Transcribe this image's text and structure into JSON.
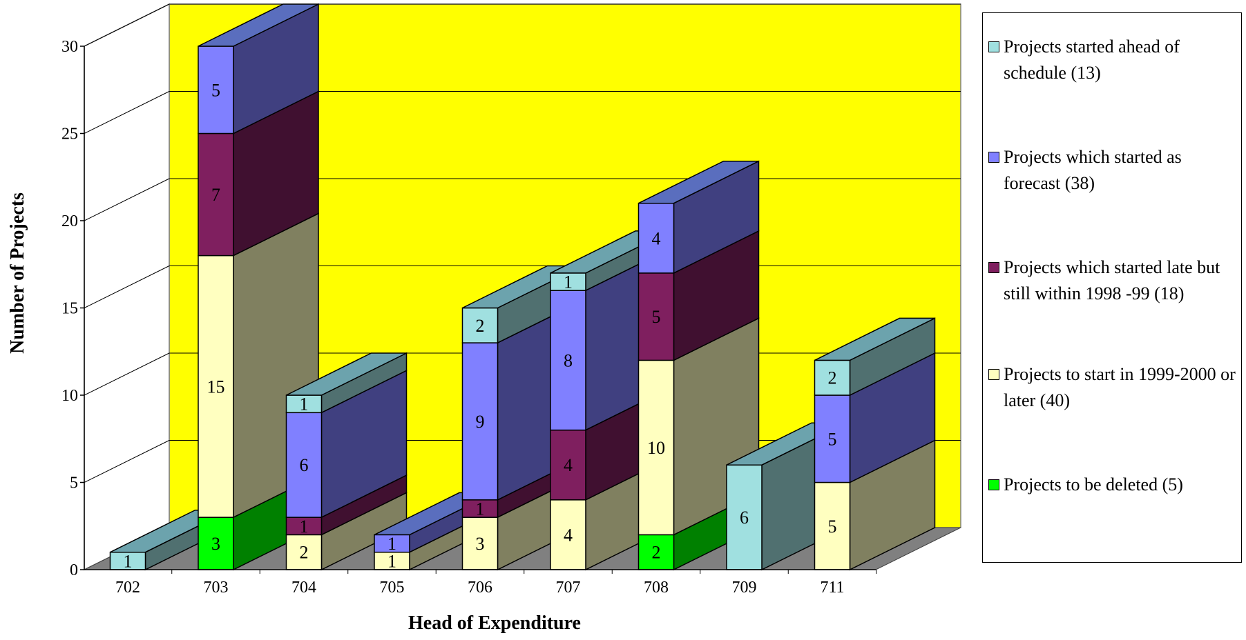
{
  "chart_data": {
    "type": "bar",
    "stacked": true,
    "three_d": true,
    "xlabel": "Head of Expenditure",
    "ylabel": "Number of Projects",
    "ylim": [
      0,
      30
    ],
    "yticks": [
      0,
      5,
      10,
      15,
      20,
      25,
      30
    ],
    "grid": true,
    "legend_position": "right",
    "plot_background": "#FFFF00",
    "categories": [
      "702",
      "703",
      "704",
      "705",
      "706",
      "707",
      "708",
      "709",
      "711"
    ],
    "series": [
      {
        "name": "Projects to be deleted (5)",
        "color": "#00FF00",
        "values": [
          0,
          3,
          0,
          0,
          0,
          0,
          2,
          0,
          0
        ]
      },
      {
        "name": "Projects to start in 1999-2000 or later (40)",
        "color": "#FFFFC0",
        "values": [
          0,
          15,
          2,
          1,
          3,
          4,
          10,
          0,
          5
        ]
      },
      {
        "name": "Projects which started late but still within 1998 -99 (18)",
        "color": "#7F1F5F",
        "values": [
          0,
          7,
          1,
          0,
          1,
          4,
          5,
          0,
          0
        ]
      },
      {
        "name": "Projects which started as forecast (38)",
        "color": "#8080FF",
        "values": [
          0,
          5,
          6,
          1,
          9,
          8,
          4,
          0,
          5
        ]
      },
      {
        "name": "Projects started ahead of schedule (13)",
        "color": "#A0E0E0",
        "values": [
          1,
          0,
          1,
          0,
          2,
          1,
          0,
          6,
          2
        ]
      }
    ],
    "legend_order": [
      4,
      3,
      2,
      1,
      0
    ]
  }
}
